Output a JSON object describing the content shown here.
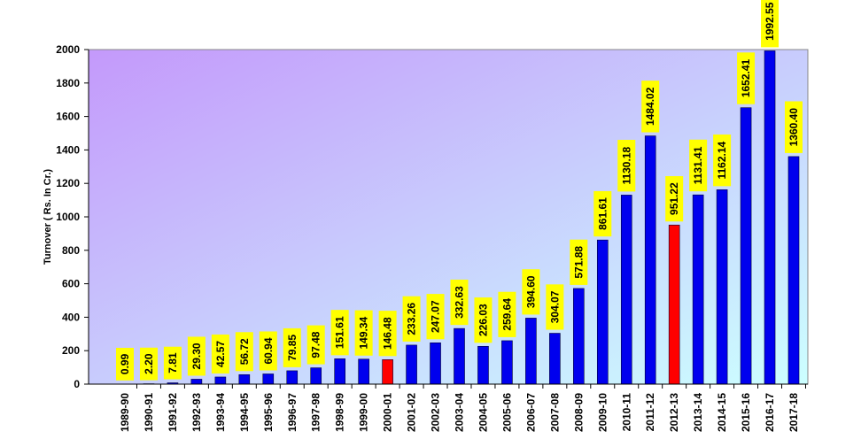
{
  "chart_data": {
    "type": "bar",
    "ylabel": "Turnover ( Rs. In Cr.)",
    "xlabel": "",
    "title": "",
    "ylim": [
      0,
      2000
    ],
    "yticks": [
      0,
      200,
      400,
      600,
      800,
      1000,
      1200,
      1400,
      1600,
      1800,
      2000
    ],
    "grid": false,
    "categories": [
      "1989-90",
      "1990-91",
      "1991-92",
      "1992-93",
      "1993-94",
      "1994-95",
      "1995-96",
      "1996-97",
      "1997-98",
      "1998-99",
      "1999-00",
      "2000-01",
      "2001-02",
      "2002-03",
      "2003-04",
      "2004-05",
      "2005-06",
      "2006-07",
      "2007-08",
      "2008-09",
      "2009-10",
      "2010-11",
      "2011-12",
      "2012-13",
      "2013-14",
      "2014-15",
      "2015-16",
      "2016-17",
      "2017-18"
    ],
    "values": [
      0.99,
      2.2,
      7.81,
      29.3,
      42.57,
      56.72,
      60.94,
      79.85,
      97.48,
      151.61,
      149.34,
      146.48,
      233.26,
      247.07,
      332.63,
      226.03,
      259.64,
      394.6,
      304.07,
      571.88,
      861.61,
      1130.18,
      1484.02,
      951.22,
      1131.41,
      1162.14,
      1652.41,
      1992.55,
      1360.4
    ],
    "value_labels": [
      "0.99",
      "2.20",
      "7.81",
      "29.30",
      "42.57",
      "56.72",
      "60.94",
      "79.85",
      "97.48",
      "151.61",
      "149.34",
      "146.48",
      "233.26",
      "247.07",
      "332.63",
      "226.03",
      "259.64",
      "394.60",
      "304.07",
      "571.88",
      "861.61",
      "1130.18",
      "1484.02",
      "951.22",
      "1131.41",
      "1162.14",
      "1652.41",
      "1992.55",
      "1360.40"
    ],
    "colors": {
      "bar": "#0000ee",
      "highlight_bar": "#ff0000",
      "label_background": "#ffff00",
      "plot_gradient_start": "#c499fb",
      "plot_gradient_end": "#ccffff"
    },
    "highlighted_categories": [
      "2000-01",
      "2012-13"
    ]
  }
}
